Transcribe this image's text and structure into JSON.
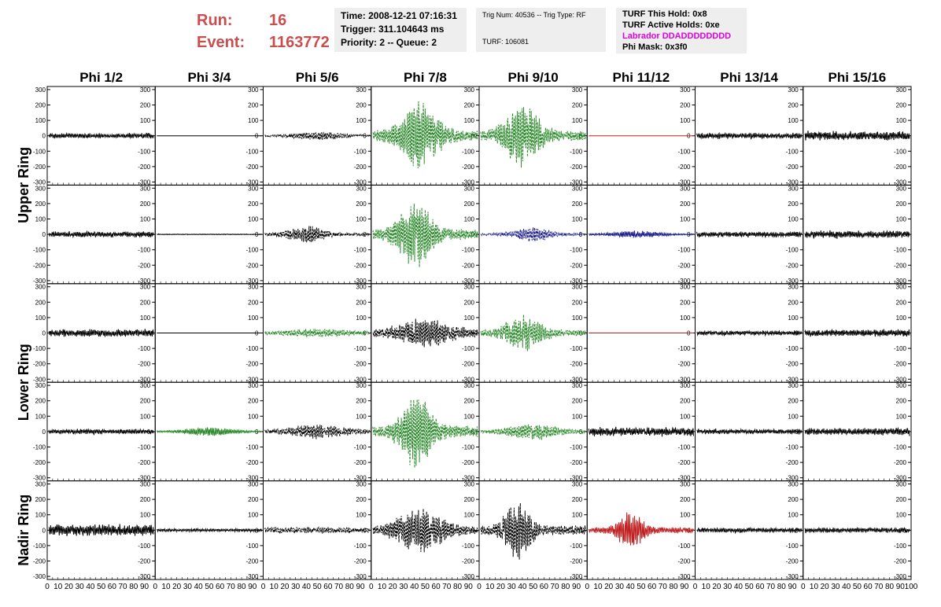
{
  "header": {
    "run_label": "Run:",
    "run_value": "16",
    "event_label": "Event:",
    "event_value": "1163772",
    "time_line": "Time: 2008-12-21 07:16:31",
    "trigger_line": "Trigger: 311.104643 ms",
    "priority_line": "Priority: 2 -- Queue: 2",
    "trig_num_line": "Trig Num: 40536 -- Trig Type: RF",
    "turf_line": "TURF: 106081",
    "turf_hold_line": "TURF This Hold: 0x8",
    "turf_active_line": "TURF Active Holds: 0xe",
    "labrador_line": "Labrador DDADDDDDDDD",
    "phi_mask_line": "Phi Mask: 0x3f0"
  },
  "chart_data": {
    "type": "line",
    "columns": [
      "Phi 1/2",
      "Phi 3/4",
      "Phi 5/6",
      "Phi 7/8",
      "Phi 9/10",
      "Phi 11/12",
      "Phi 13/14",
      "Phi 15/16"
    ],
    "row_groups": [
      {
        "label": "Upper Ring",
        "rows": [
          0,
          1
        ]
      },
      {
        "label": "Lower Ring",
        "rows": [
          2,
          3
        ]
      },
      {
        "label": "Nadir Ring",
        "rows": [
          4
        ]
      }
    ],
    "ylim": [
      -320,
      320
    ],
    "xlim": [
      0,
      100
    ],
    "yticks": [
      -300,
      -200,
      -100,
      0,
      100,
      200,
      300
    ],
    "xtick_labels": [
      "0",
      "10",
      "20",
      "30",
      "40",
      "50",
      "60",
      "70",
      "80",
      "90",
      "100"
    ],
    "colors": {
      "black": "#000000",
      "green": "#2a8a2a",
      "blue": "#1c1c8c",
      "red": "#c02020"
    },
    "traces": [
      [
        {
          "color": "black",
          "amp": 20,
          "center": 50,
          "width": 100,
          "dash": false
        },
        {
          "color": "black",
          "amp": 0,
          "center": 50,
          "width": 100,
          "dash": false
        },
        {
          "color": "black",
          "amp": 30,
          "center": 50,
          "width": 40,
          "dash": true
        },
        {
          "color": "green",
          "amp": 230,
          "center": 45,
          "width": 30,
          "dash": true
        },
        {
          "color": "green",
          "amp": 220,
          "center": 40,
          "width": 28,
          "dash": true
        },
        {
          "color": "red",
          "amp": 0,
          "center": 50,
          "width": 100,
          "dash": false
        },
        {
          "color": "black",
          "amp": 22,
          "center": 50,
          "width": 100,
          "dash": false
        },
        {
          "color": "black",
          "amp": 35,
          "center": 50,
          "width": 100,
          "dash": false
        }
      ],
      [
        {
          "color": "black",
          "amp": 22,
          "center": 50,
          "width": 100,
          "dash": false
        },
        {
          "color": "black",
          "amp": 3,
          "center": 50,
          "width": 100,
          "dash": false
        },
        {
          "color": "black",
          "amp": 60,
          "center": 40,
          "width": 30,
          "dash": true
        },
        {
          "color": "green",
          "amp": 240,
          "center": 40,
          "width": 25,
          "dash": true
        },
        {
          "color": "blue",
          "amp": 50,
          "center": 50,
          "width": 30,
          "dash": true
        },
        {
          "color": "blue",
          "amp": 25,
          "center": 45,
          "width": 40,
          "dash": false
        },
        {
          "color": "black",
          "amp": 22,
          "center": 50,
          "width": 100,
          "dash": false
        },
        {
          "color": "black",
          "amp": 30,
          "center": 50,
          "width": 100,
          "dash": false
        }
      ],
      [
        {
          "color": "black",
          "amp": 30,
          "center": 50,
          "width": 100,
          "dash": false
        },
        {
          "color": "black",
          "amp": 0,
          "center": 50,
          "width": 100,
          "dash": false
        },
        {
          "color": "green",
          "amp": 30,
          "center": 50,
          "width": 60,
          "dash": true
        },
        {
          "color": "black",
          "amp": 100,
          "center": 50,
          "width": 50,
          "dash": true
        },
        {
          "color": "green",
          "amp": 130,
          "center": 40,
          "width": 30,
          "dash": true
        },
        {
          "color": "red",
          "amp": 0,
          "center": 50,
          "width": 100,
          "dash": false
        },
        {
          "color": "black",
          "amp": 18,
          "center": 50,
          "width": 100,
          "dash": false
        },
        {
          "color": "black",
          "amp": 28,
          "center": 50,
          "width": 100,
          "dash": false
        }
      ],
      [
        {
          "color": "black",
          "amp": 20,
          "center": 50,
          "width": 100,
          "dash": false
        },
        {
          "color": "green",
          "amp": 30,
          "center": 50,
          "width": 40,
          "dash": false
        },
        {
          "color": "black",
          "amp": 50,
          "center": 50,
          "width": 50,
          "dash": true
        },
        {
          "color": "green",
          "amp": 250,
          "center": 42,
          "width": 25,
          "dash": true
        },
        {
          "color": "green",
          "amp": 60,
          "center": 50,
          "width": 40,
          "dash": true
        },
        {
          "color": "black",
          "amp": 35,
          "center": 50,
          "width": 100,
          "dash": false
        },
        {
          "color": "black",
          "amp": 20,
          "center": 50,
          "width": 100,
          "dash": false
        },
        {
          "color": "black",
          "amp": 30,
          "center": 50,
          "width": 100,
          "dash": false
        }
      ],
      [
        {
          "color": "black",
          "amp": 45,
          "center": 50,
          "width": 100,
          "dash": false
        },
        {
          "color": "black",
          "amp": 12,
          "center": 50,
          "width": 100,
          "dash": false
        },
        {
          "color": "black",
          "amp": 25,
          "center": 50,
          "width": 100,
          "dash": true
        },
        {
          "color": "black",
          "amp": 150,
          "center": 45,
          "width": 40,
          "dash": true
        },
        {
          "color": "black",
          "amp": 210,
          "center": 35,
          "width": 20,
          "dash": true
        },
        {
          "color": "red",
          "amp": 130,
          "center": 40,
          "width": 20,
          "dash": false
        },
        {
          "color": "black",
          "amp": 20,
          "center": 50,
          "width": 100,
          "dash": false
        },
        {
          "color": "black",
          "amp": 20,
          "center": 50,
          "width": 100,
          "dash": false
        }
      ]
    ]
  }
}
